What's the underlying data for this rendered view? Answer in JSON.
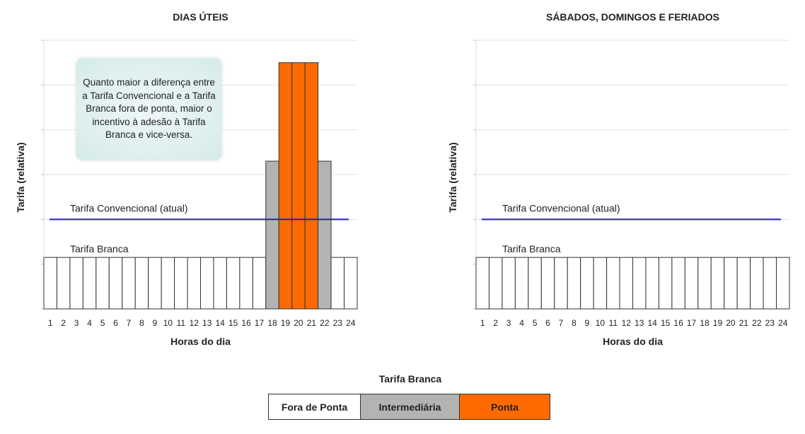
{
  "chart_data": [
    {
      "type": "bar",
      "title": "DIAS ÚTEIS",
      "xlabel": "Horas do dia",
      "ylabel": "Tarifa (relativa)",
      "ylim": [
        0,
        6
      ],
      "grid": true,
      "categories": [
        "1",
        "2",
        "3",
        "4",
        "5",
        "6",
        "7",
        "8",
        "9",
        "10",
        "11",
        "12",
        "13",
        "14",
        "15",
        "16",
        "17",
        "18",
        "19",
        "20",
        "21",
        "22",
        "23",
        "24"
      ],
      "series": [
        {
          "name": "Tarifa Branca",
          "values": [
            1.15,
            1.15,
            1.15,
            1.15,
            1.15,
            1.15,
            1.15,
            1.15,
            1.15,
            1.15,
            1.15,
            1.15,
            1.15,
            1.15,
            1.15,
            1.15,
            1.15,
            3.3,
            5.5,
            5.5,
            5.5,
            3.3,
            1.15,
            1.15
          ],
          "periods": [
            "fora",
            "fora",
            "fora",
            "fora",
            "fora",
            "fora",
            "fora",
            "fora",
            "fora",
            "fora",
            "fora",
            "fora",
            "fora",
            "fora",
            "fora",
            "fora",
            "fora",
            "inter",
            "ponta",
            "ponta",
            "ponta",
            "inter",
            "fora",
            "fora"
          ]
        }
      ],
      "reference_line": {
        "label": "Tarifa Convencional (atual)",
        "value": 2
      },
      "series_label": "Tarifa Branca",
      "annotation": "Quanto maior a diferença entre a Tarifa Convencional e a Tarifa Branca fora de ponta, maior o incentivo à adesão à Tarifa Branca e vice-versa."
    },
    {
      "type": "bar",
      "title": "SÁBADOS, DOMINGOS E FERIADOS",
      "xlabel": "Horas do dia",
      "ylabel": "Tarifa (relativa)",
      "ylim": [
        0,
        6
      ],
      "grid": true,
      "categories": [
        "1",
        "2",
        "3",
        "4",
        "5",
        "6",
        "7",
        "8",
        "9",
        "10",
        "11",
        "12",
        "13",
        "14",
        "15",
        "16",
        "17",
        "18",
        "19",
        "20",
        "21",
        "22",
        "23",
        "24"
      ],
      "series": [
        {
          "name": "Tarifa Branca",
          "values": [
            1.15,
            1.15,
            1.15,
            1.15,
            1.15,
            1.15,
            1.15,
            1.15,
            1.15,
            1.15,
            1.15,
            1.15,
            1.15,
            1.15,
            1.15,
            1.15,
            1.15,
            1.15,
            1.15,
            1.15,
            1.15,
            1.15,
            1.15,
            1.15
          ],
          "periods": [
            "fora",
            "fora",
            "fora",
            "fora",
            "fora",
            "fora",
            "fora",
            "fora",
            "fora",
            "fora",
            "fora",
            "fora",
            "fora",
            "fora",
            "fora",
            "fora",
            "fora",
            "fora",
            "fora",
            "fora",
            "fora",
            "fora",
            "fora",
            "fora"
          ]
        }
      ],
      "reference_line": {
        "label": "Tarifa Convencional (atual)",
        "value": 2
      },
      "series_label": "Tarifa Branca"
    }
  ],
  "legend": {
    "title": "Tarifa Branca",
    "items": [
      {
        "key": "fora",
        "label": "Fora de Ponta",
        "color": "#ffffff"
      },
      {
        "key": "inter",
        "label": "Intermediária",
        "color": "#b3b3b3"
      },
      {
        "key": "ponta",
        "label": "Ponta",
        "color": "#ff6a00"
      }
    ]
  },
  "colors": {
    "reference_line": "#1a1adc",
    "grid": "#e2e2e2"
  }
}
